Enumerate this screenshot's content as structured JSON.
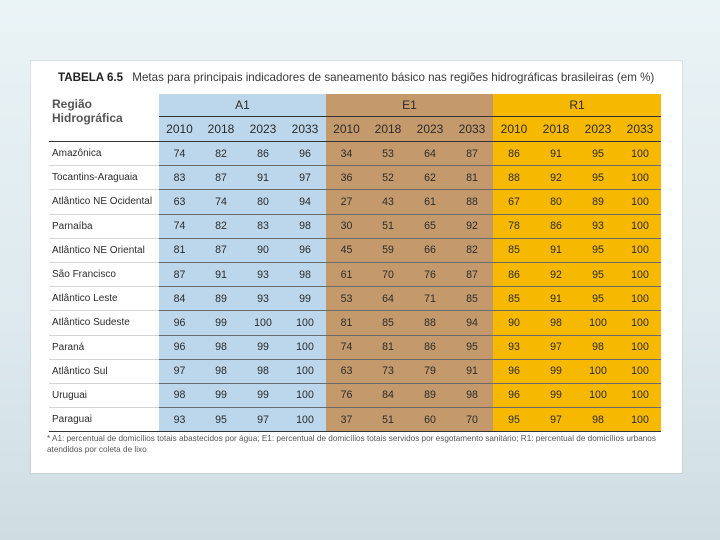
{
  "table": {
    "number": "TABELA 6.5",
    "title": "Metas para principais indicadores de saneamento básico nas regiões hidrográficas brasileiras (em %)",
    "region_header": "Região Hidrográfica",
    "groups": [
      "A1",
      "E1",
      "R1"
    ],
    "years": [
      "2010",
      "2018",
      "2023",
      "2033"
    ],
    "rows": [
      {
        "region": "Amazônica",
        "A1": [
          "74",
          "82",
          "86",
          "96"
        ],
        "E1": [
          "34",
          "53",
          "64",
          "87"
        ],
        "R1": [
          "86",
          "91",
          "95",
          "100"
        ]
      },
      {
        "region": "Tocantins-Araguaia",
        "A1": [
          "83",
          "87",
          "91",
          "97"
        ],
        "E1": [
          "36",
          "52",
          "62",
          "81"
        ],
        "R1": [
          "88",
          "92",
          "95",
          "100"
        ]
      },
      {
        "region": "Atlântico NE Ocidental",
        "A1": [
          "63",
          "74",
          "80",
          "94"
        ],
        "E1": [
          "27",
          "43",
          "61",
          "88"
        ],
        "R1": [
          "67",
          "80",
          "89",
          "100"
        ]
      },
      {
        "region": "Parnaíba",
        "A1": [
          "74",
          "82",
          "83",
          "98"
        ],
        "E1": [
          "30",
          "51",
          "65",
          "92"
        ],
        "R1": [
          "78",
          "86",
          "93",
          "100"
        ]
      },
      {
        "region": "Atlântico NE Oriental",
        "A1": [
          "81",
          "87",
          "90",
          "96"
        ],
        "E1": [
          "45",
          "59",
          "66",
          "82"
        ],
        "R1": [
          "85",
          "91",
          "95",
          "100"
        ]
      },
      {
        "region": "São Francisco",
        "A1": [
          "87",
          "91",
          "93",
          "98"
        ],
        "E1": [
          "61",
          "70",
          "76",
          "87"
        ],
        "R1": [
          "86",
          "92",
          "95",
          "100"
        ]
      },
      {
        "region": "Atlântico Leste",
        "A1": [
          "84",
          "89",
          "93",
          "99"
        ],
        "E1": [
          "53",
          "64",
          "71",
          "85"
        ],
        "R1": [
          "85",
          "91",
          "95",
          "100"
        ]
      },
      {
        "region": "Atlântico Sudeste",
        "A1": [
          "96",
          "99",
          "100",
          "100"
        ],
        "E1": [
          "81",
          "85",
          "88",
          "94"
        ],
        "R1": [
          "90",
          "98",
          "100",
          "100"
        ]
      },
      {
        "region": "Paraná",
        "A1": [
          "96",
          "98",
          "99",
          "100"
        ],
        "E1": [
          "74",
          "81",
          "86",
          "95"
        ],
        "R1": [
          "93",
          "97",
          "98",
          "100"
        ]
      },
      {
        "region": "Atlântico Sul",
        "A1": [
          "97",
          "98",
          "98",
          "100"
        ],
        "E1": [
          "63",
          "73",
          "79",
          "91"
        ],
        "R1": [
          "96",
          "99",
          "100",
          "100"
        ]
      },
      {
        "region": "Uruguai",
        "A1": [
          "98",
          "99",
          "99",
          "100"
        ],
        "E1": [
          "76",
          "84",
          "89",
          "98"
        ],
        "R1": [
          "96",
          "99",
          "100",
          "100"
        ]
      },
      {
        "region": "Paraguai",
        "A1": [
          "93",
          "95",
          "97",
          "100"
        ],
        "E1": [
          "37",
          "51",
          "60",
          "70"
        ],
        "R1": [
          "95",
          "97",
          "98",
          "100"
        ]
      }
    ],
    "footnote": "* A1: percentual de domicílios totais abastecidos por água; E1: percentual de domicílios totais servidos por esgotamento sanitário; R1: percentual de domicílios urbanos atendidos por coleta de lixo"
  },
  "colors": {
    "A1": "#bcd7ec",
    "E1": "#c49a6c",
    "R1": "#f7b800"
  }
}
